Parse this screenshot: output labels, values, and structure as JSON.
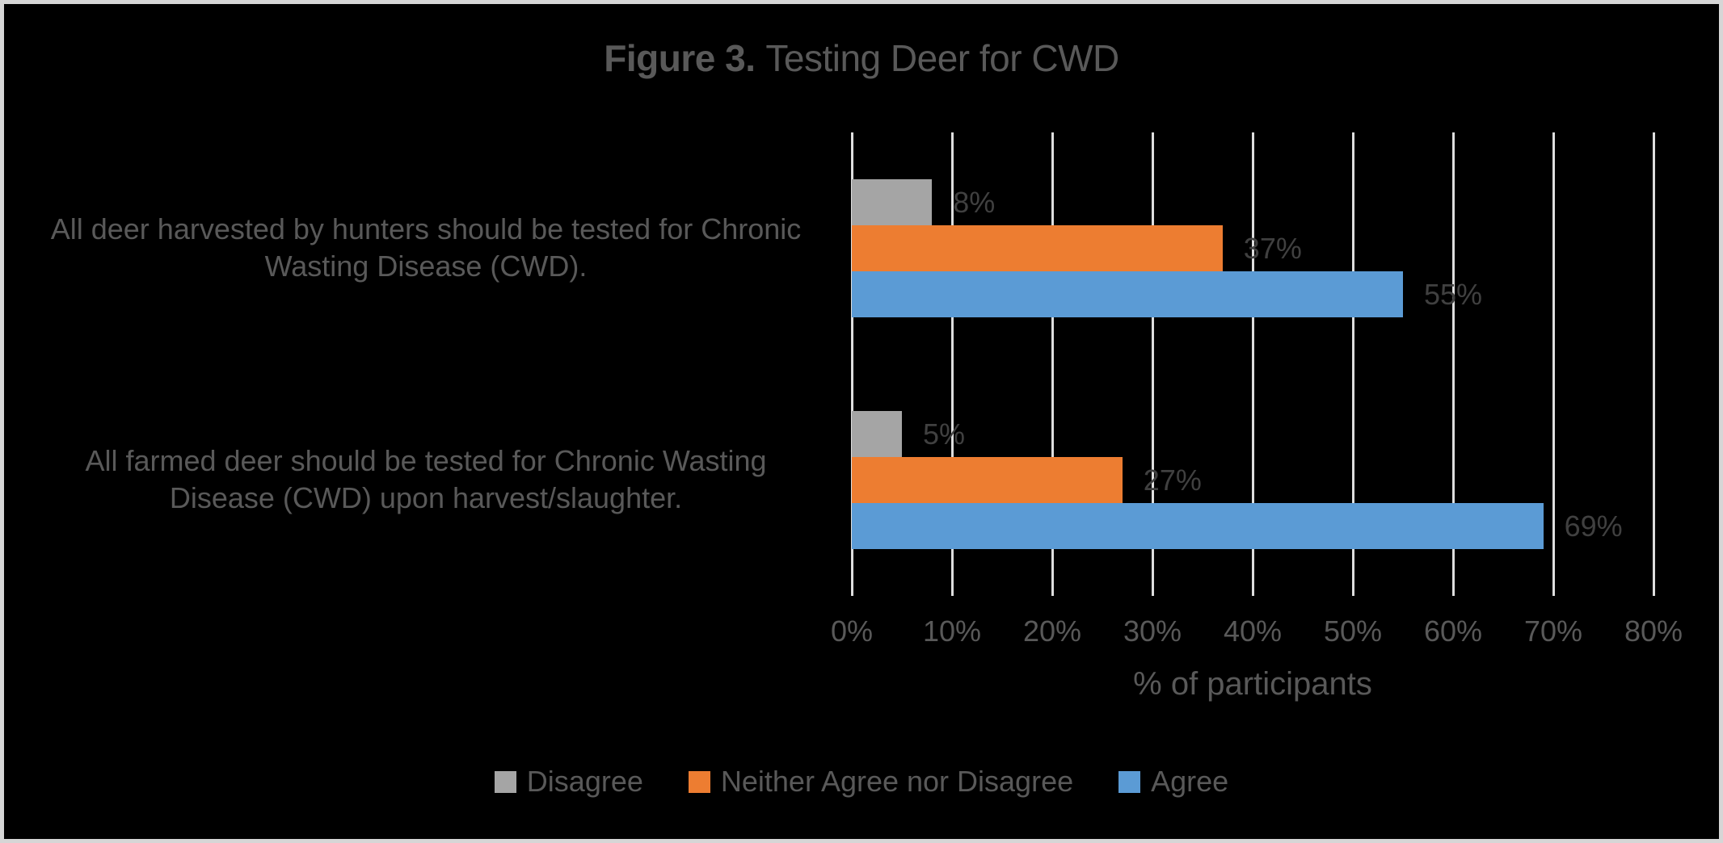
{
  "title": {
    "prefix": "Figure 3.",
    "rest": "Testing Deer for CWD"
  },
  "colors": {
    "background": "#000000",
    "border": "#D6D6D6",
    "gridline": "#DEDEDE",
    "title_text": "#595959",
    "axis_text": "#595959",
    "data_label_text": "#404040",
    "series_disagree": "#A5A5A5",
    "series_neither": "#ED7D31",
    "series_agree": "#5B9BD5"
  },
  "chart_data": {
    "type": "bar",
    "orientation": "horizontal",
    "title": "Figure 3. Testing Deer for CWD",
    "categories": [
      "All deer harvested by hunters should be tested for Chronic Wasting Disease (CWD).",
      "All farmed deer should be tested for Chronic Wasting Disease (CWD) upon harvest/slaughter."
    ],
    "category_lines": [
      [
        "All deer harvested by hunters should be tested for Chronic",
        "Wasting Disease (CWD)."
      ],
      [
        "All farmed deer should be tested for Chronic Wasting",
        "Disease (CWD) upon harvest/slaughter."
      ]
    ],
    "series": [
      {
        "name": "Disagree",
        "color": "#A5A5A5",
        "values": [
          8,
          5
        ]
      },
      {
        "name": "Neither Agree nor Disagree",
        "color": "#ED7D31",
        "values": [
          37,
          27
        ]
      },
      {
        "name": "Agree",
        "color": "#5B9BD5",
        "values": [
          55,
          69
        ]
      }
    ],
    "data_label_format": "{value}%",
    "xlabel": "% of participants",
    "xlim": [
      0,
      80
    ],
    "xticks": [
      "0%",
      "10%",
      "20%",
      "30%",
      "40%",
      "50%",
      "60%",
      "70%",
      "80%"
    ],
    "grid": "vertical-only",
    "legend_position": "bottom"
  }
}
